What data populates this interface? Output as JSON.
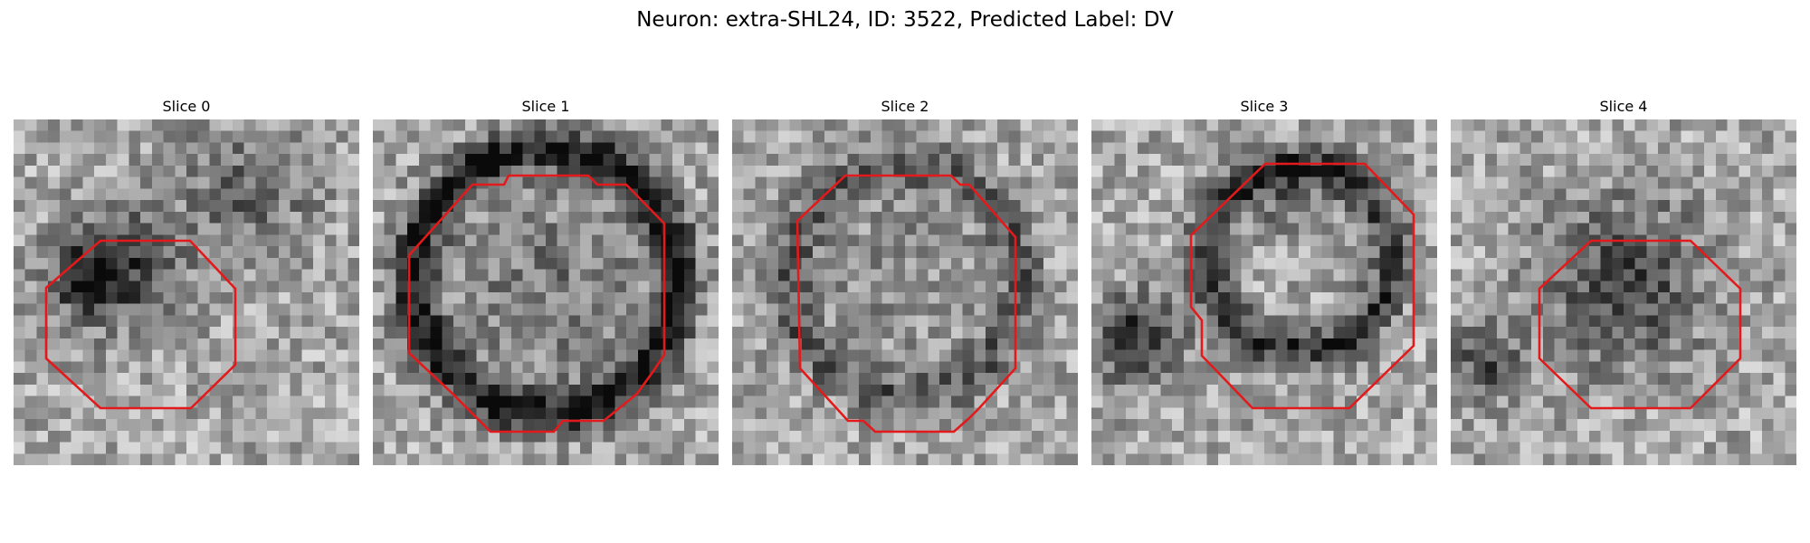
{
  "figure": {
    "title": "Neuron: extra-SHL24, ID: 3522, Predicted Label: DV"
  },
  "slices": [
    {
      "title": "Slice 0"
    },
    {
      "title": "Slice 1"
    },
    {
      "title": "Slice 2"
    },
    {
      "title": "Slice 3"
    },
    {
      "title": "Slice 4"
    }
  ],
  "colors": {
    "contour": "#e31a1c",
    "colormap": "grayscale"
  }
}
